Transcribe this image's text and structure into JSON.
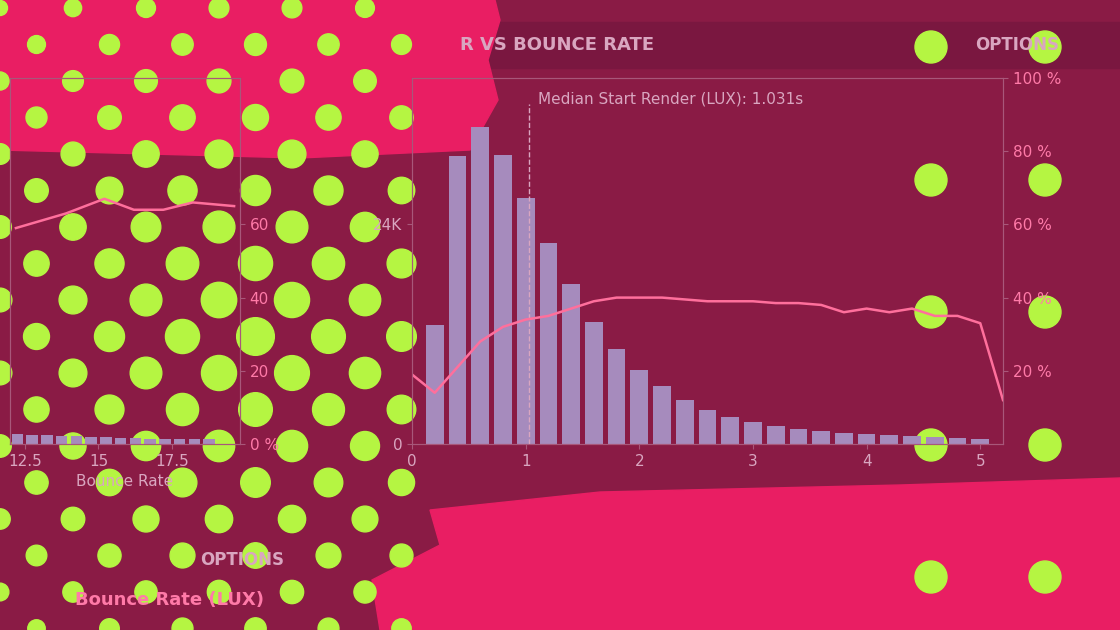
{
  "chart_data": [
    {
      "type": "histogram",
      "title": "R VS BOUNCE RATE",
      "bins": [
        0.1,
        0.3,
        0.5,
        0.7,
        0.9,
        1.1,
        1.3,
        1.5,
        1.7,
        1.9,
        2.1,
        2.3,
        2.5,
        2.7,
        2.9,
        3.1,
        3.3,
        3.5,
        3.7,
        3.9,
        4.1,
        4.3,
        4.5,
        4.7,
        4.9,
        5.1
      ],
      "values": [
        13000,
        31500,
        34600,
        31600,
        26900,
        22000,
        17500,
        13300,
        10400,
        8100,
        6300,
        4800,
        3700,
        2900,
        2400,
        2000,
        1600,
        1400,
        1200,
        1100,
        1000,
        900,
        800,
        700,
        600
      ],
      "color": "#a68bbd",
      "xlim": [
        0,
        5.2
      ],
      "xticks": [
        0,
        1,
        2,
        3,
        4,
        5
      ],
      "ylim": [
        0,
        40000
      ],
      "yticks": [
        0,
        {
          "value": 24000,
          "label": "24K"
        }
      ],
      "y2lim": [
        0,
        100
      ],
      "y2ticks": [
        {
          "value": 20,
          "label": "20 %"
        },
        {
          "value": 40,
          "label": "40 %"
        },
        {
          "value": 60,
          "label": "60 %"
        },
        {
          "value": 80,
          "label": "80 %"
        },
        {
          "value": 100,
          "label": "100 %"
        }
      ],
      "series": [
        {
          "type": "line",
          "axis": "y2",
          "color": "#ff6f9c",
          "x": [
            0,
            0.2,
            0.4,
            0.6,
            0.8,
            1.0,
            1.2,
            1.4,
            1.6,
            1.8,
            2.0,
            2.2,
            2.4,
            2.6,
            2.8,
            3.0,
            3.2,
            3.4,
            3.6,
            3.8,
            4.0,
            4.2,
            4.4,
            4.6,
            4.8,
            5.0,
            5.2
          ],
          "values": [
            19,
            14,
            21,
            28,
            32,
            34,
            35,
            37,
            39,
            40,
            40,
            40,
            39.5,
            39,
            39,
            39,
            38.5,
            38.5,
            38,
            36,
            37,
            36,
            37,
            35,
            35,
            33,
            12
          ]
        }
      ],
      "annotations": [
        {
          "text": "Median Start Render (LUX): 1.031s",
          "x": 1.031
        },
        {
          "text": "OPTIONS"
        }
      ]
    },
    {
      "type": "histogram",
      "x_label": "Bounce Rate",
      "bins": [
        12,
        12.5,
        13,
        13.5,
        14,
        14.5,
        15,
        15.5,
        16,
        16.5,
        17,
        17.5,
        18,
        18.5,
        19
      ],
      "values": [
        1100,
        1000,
        950,
        900,
        850,
        800,
        750,
        700,
        650,
        600,
        600,
        550,
        500,
        500
      ],
      "color": "#a68bbd",
      "xlim": [
        12,
        19.8
      ],
      "xticks": [
        12.5,
        15,
        17.5
      ],
      "ylim": [
        0,
        40000
      ],
      "yticks": [],
      "y2lim": [
        0,
        100
      ],
      "y2ticks": [
        {
          "value": 0,
          "label": "0 %"
        },
        20,
        40,
        60
      ],
      "series": [
        {
          "type": "line",
          "axis": "y2",
          "color": "#ff6f9c",
          "x": [
            12.2,
            13.9,
            15.2,
            16.2,
            17.2,
            18.2,
            19.6
          ],
          "values": [
            59,
            63,
            67,
            64,
            64,
            66,
            65
          ]
        }
      ],
      "annotations": [
        {
          "text": "OPTIONS"
        },
        {
          "text": "Bounce Rate (LUX)"
        }
      ]
    }
  ]
}
